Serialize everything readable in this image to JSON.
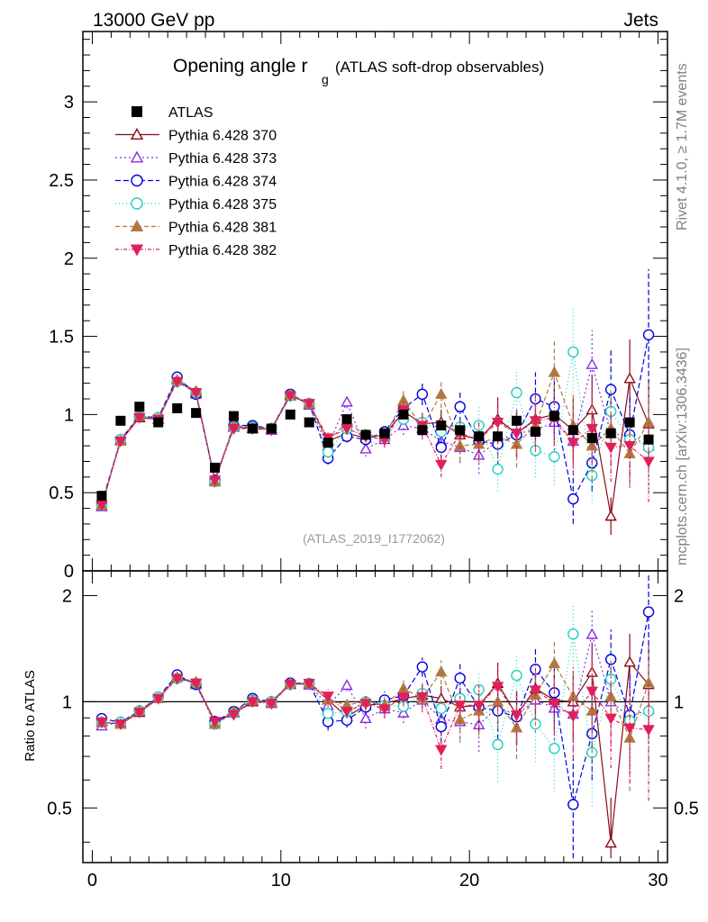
{
  "header": {
    "left": "13000 GeV pp",
    "right": "Jets"
  },
  "title": {
    "main": "Opening angle r",
    "subscript": "g",
    "detail": "(ATLAS soft-drop observables)"
  },
  "side_labels": {
    "rivet": "Rivet 4.1.0, ≥ 1.7M events",
    "mcplots": "mcplots.cern.ch [arXiv:1306.3436]"
  },
  "analysis_id": "(ATLAS_2019_I1772062)",
  "ratio_ylabel": "Ratio to ATLAS",
  "chart_data": {
    "type": "scatter",
    "x": [
      0.5,
      1.5,
      2.5,
      3.5,
      4.5,
      5.5,
      6.5,
      7.5,
      8.5,
      9.5,
      10.5,
      11.5,
      12.5,
      13.5,
      14.5,
      15.5,
      16.5,
      17.5,
      18.5,
      19.5,
      20.5,
      21.5,
      22.5,
      23.5,
      24.5,
      25.5,
      26.5,
      27.5,
      28.5,
      29.5
    ],
    "xlim": [
      -0.5,
      30.5
    ],
    "xticks": [
      0,
      10,
      20,
      30
    ],
    "main_ylim": [
      0,
      3.45
    ],
    "main_yticks": [
      0.5,
      1,
      1.5,
      2,
      2.5,
      3
    ],
    "main_ytick_labels": [
      "0.5",
      "1",
      "1.5",
      "2",
      "2.5",
      "3"
    ],
    "main_bottom_label": "0",
    "ratio_ylim": [
      0.35,
      2.35
    ],
    "ratio_yticks": [
      0.5,
      1,
      2
    ],
    "ratio_ytick_labels": [
      "0.5",
      "1",
      "2"
    ],
    "data": {
      "name": "ATLAS",
      "color": "#000000",
      "values": [
        0.48,
        0.96,
        1.05,
        0.95,
        1.04,
        1.01,
        0.66,
        0.99,
        0.91,
        0.91,
        1.0,
        0.95,
        0.82,
        0.97,
        0.87,
        0.88,
        1.0,
        0.9,
        0.93,
        0.9,
        0.86,
        0.86,
        0.96,
        0.89,
        0.99,
        0.9,
        0.85,
        0.88,
        0.95,
        0.84
      ]
    },
    "series": [
      {
        "name": "Pythia 6.428 370",
        "color": "#8b0a1a",
        "marker": "triangle-open",
        "dash": "",
        "values": [
          0.42,
          0.83,
          0.98,
          0.97,
          1.22,
          1.14,
          0.58,
          0.92,
          0.91,
          0.91,
          1.12,
          1.07,
          0.83,
          0.88,
          0.85,
          0.87,
          1.02,
          0.94,
          0.95,
          0.87,
          0.84,
          0.97,
          0.88,
          0.97,
          1.0,
          0.9,
          1.03,
          0.35,
          1.23,
          0.94
        ],
        "errors": [
          0.01,
          0.01,
          0.01,
          0.01,
          0.01,
          0.01,
          0.01,
          0.01,
          0.02,
          0.02,
          0.02,
          0.02,
          0.04,
          0.04,
          0.04,
          0.05,
          0.06,
          0.07,
          0.08,
          0.1,
          0.12,
          0.14,
          0.15,
          0.16,
          0.18,
          0.2,
          0.22,
          0.12,
          0.25,
          0.28
        ]
      },
      {
        "name": "Pythia 6.428 373",
        "color": "#8a2be2",
        "marker": "triangle-open",
        "dash": "2,3",
        "values": [
          0.41,
          0.84,
          0.99,
          0.97,
          1.23,
          1.13,
          0.57,
          0.92,
          0.92,
          0.9,
          1.13,
          1.06,
          0.8,
          1.08,
          0.78,
          0.84,
          0.93,
          0.91,
          0.83,
          0.79,
          0.74,
          0.83,
          0.88,
          0.9,
          0.95,
          0.83,
          1.32,
          0.88,
          0.86,
          0.8
        ],
        "errors": [
          0.01,
          0.01,
          0.01,
          0.01,
          0.01,
          0.01,
          0.01,
          0.01,
          0.02,
          0.02,
          0.02,
          0.02,
          0.04,
          0.04,
          0.05,
          0.05,
          0.06,
          0.07,
          0.08,
          0.1,
          0.12,
          0.14,
          0.15,
          0.17,
          0.18,
          0.2,
          0.22,
          0.24,
          0.26,
          0.28
        ]
      },
      {
        "name": "Pythia 6.428 374",
        "color": "#0000dd",
        "marker": "circle-open",
        "dash": "6,3",
        "values": [
          0.43,
          0.84,
          0.99,
          0.98,
          1.24,
          1.13,
          0.58,
          0.93,
          0.93,
          0.91,
          1.13,
          1.07,
          0.72,
          0.86,
          0.84,
          0.89,
          1.04,
          1.13,
          0.79,
          1.05,
          0.83,
          0.81,
          0.87,
          1.1,
          1.05,
          0.46,
          0.69,
          1.16,
          0.87,
          1.51
        ],
        "errors": [
          0.01,
          0.01,
          0.01,
          0.01,
          0.01,
          0.01,
          0.01,
          0.01,
          0.02,
          0.02,
          0.02,
          0.02,
          0.04,
          0.04,
          0.04,
          0.05,
          0.06,
          0.07,
          0.08,
          0.1,
          0.12,
          0.14,
          0.15,
          0.17,
          0.18,
          0.16,
          0.18,
          0.25,
          0.26,
          0.42
        ]
      },
      {
        "name": "Pythia 6.428 375",
        "color": "#20d0c0",
        "marker": "circle-open",
        "dash": "1,3",
        "values": [
          0.42,
          0.84,
          0.99,
          0.98,
          1.21,
          1.14,
          0.57,
          0.92,
          0.92,
          0.91,
          1.12,
          1.07,
          0.76,
          0.91,
          0.87,
          0.86,
          0.97,
          0.95,
          0.89,
          0.92,
          0.93,
          0.65,
          1.14,
          0.77,
          0.73,
          1.4,
          0.61,
          1.02,
          0.84,
          0.79
        ],
        "errors": [
          0.01,
          0.01,
          0.01,
          0.01,
          0.01,
          0.01,
          0.01,
          0.01,
          0.02,
          0.02,
          0.02,
          0.02,
          0.04,
          0.04,
          0.04,
          0.05,
          0.06,
          0.07,
          0.08,
          0.1,
          0.12,
          0.14,
          0.15,
          0.17,
          0.18,
          0.28,
          0.18,
          0.26,
          0.24,
          0.26
        ]
      },
      {
        "name": "Pythia 6.428 381",
        "color": "#b07840",
        "marker": "triangle-filled",
        "dash": "5,3",
        "values": [
          0.42,
          0.83,
          0.99,
          0.97,
          1.22,
          1.15,
          0.57,
          0.93,
          0.92,
          0.91,
          1.13,
          1.07,
          0.83,
          0.95,
          0.87,
          0.86,
          1.09,
          0.92,
          1.13,
          0.8,
          0.81,
          0.86,
          0.81,
          0.93,
          1.27,
          0.93,
          0.8,
          0.91,
          0.75,
          0.95
        ],
        "errors": [
          0.01,
          0.01,
          0.01,
          0.01,
          0.01,
          0.01,
          0.01,
          0.01,
          0.02,
          0.02,
          0.02,
          0.02,
          0.04,
          0.04,
          0.04,
          0.05,
          0.06,
          0.07,
          0.09,
          0.1,
          0.12,
          0.14,
          0.15,
          0.17,
          0.2,
          0.2,
          0.22,
          0.24,
          0.22,
          0.28
        ]
      },
      {
        "name": "Pythia 6.428 382",
        "color": "#e0205a",
        "marker": "triangle-down-filled",
        "dash": "4,2,1,2",
        "values": [
          0.42,
          0.83,
          0.98,
          0.97,
          1.21,
          1.14,
          0.58,
          0.91,
          0.91,
          0.9,
          1.12,
          1.07,
          0.85,
          0.91,
          0.86,
          0.84,
          1.03,
          0.93,
          0.68,
          0.88,
          0.84,
          0.95,
          0.88,
          0.96,
          0.98,
          0.82,
          0.91,
          0.79,
          0.8,
          0.7
        ],
        "errors": [
          0.01,
          0.01,
          0.01,
          0.01,
          0.01,
          0.01,
          0.01,
          0.01,
          0.02,
          0.02,
          0.02,
          0.02,
          0.04,
          0.04,
          0.04,
          0.05,
          0.06,
          0.07,
          0.08,
          0.1,
          0.12,
          0.14,
          0.15,
          0.17,
          0.18,
          0.2,
          0.22,
          0.22,
          0.24,
          0.26
        ]
      }
    ]
  }
}
